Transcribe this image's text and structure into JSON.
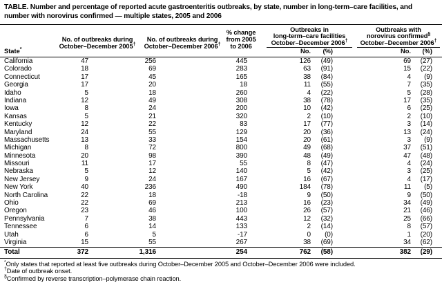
{
  "title": {
    "line1": "TABLE. Number and percentage of reported acute gastroenteritis outbreaks, by state, number in long-term–care facilities, and",
    "line2": "number with norovirus confirmed — multiple states, 2005 and 2006"
  },
  "table": {
    "header": {
      "state": {
        "text": "State",
        "sup": "*"
      },
      "col_2005": {
        "line1": "No. of outbreaks during",
        "line2": "October–December 2005",
        "sup": "†"
      },
      "col_2006": {
        "line1": "No. of outbreaks during",
        "line2": "October–December 2006",
        "sup": "†"
      },
      "col_pct_change": {
        "line1": "% change",
        "line2": "from 2005",
        "line3": "to 2006"
      },
      "group_ltc": {
        "line1": "Outbreaks in",
        "line2": "long-term–care facilities",
        "line3": "October–December 2006",
        "sup": "†"
      },
      "group_norovirus": {
        "line1": "Outbreaks with",
        "line2": "norovirus confirmed",
        "line2_sup": "§",
        "line3": "October–December 2006",
        "sup": "†"
      },
      "sub_no": "No.",
      "sub_pct": "(%)"
    },
    "rows": [
      {
        "state": "California",
        "y2005": "47",
        "y2006": "256",
        "pct": "445",
        "ltc_no": "126",
        "ltc_pct": "(49)",
        "nv_no": "69",
        "nv_pct": "(27)"
      },
      {
        "state": "Colorado",
        "y2005": "18",
        "y2006": "69",
        "pct": "283",
        "ltc_no": "63",
        "ltc_pct": "(91)",
        "nv_no": "15",
        "nv_pct": "(22)"
      },
      {
        "state": "Connecticut",
        "y2005": "17",
        "y2006": "45",
        "pct": "165",
        "ltc_no": "38",
        "ltc_pct": "(84)",
        "nv_no": "4",
        "nv_pct": "(9)"
      },
      {
        "state": "Georgia",
        "y2005": "17",
        "y2006": "20",
        "pct": "18",
        "ltc_no": "11",
        "ltc_pct": "(55)",
        "nv_no": "7",
        "nv_pct": "(35)"
      },
      {
        "state": "Idaho",
        "y2005": "5",
        "y2006": "18",
        "pct": "260",
        "ltc_no": "4",
        "ltc_pct": "(22)",
        "nv_no": "5",
        "nv_pct": "(28)"
      },
      {
        "state": "Indiana",
        "y2005": "12",
        "y2006": "49",
        "pct": "308",
        "ltc_no": "38",
        "ltc_pct": "(78)",
        "nv_no": "17",
        "nv_pct": "(35)"
      },
      {
        "state": "Iowa",
        "y2005": "8",
        "y2006": "24",
        "pct": "200",
        "ltc_no": "10",
        "ltc_pct": "(42)",
        "nv_no": "6",
        "nv_pct": "(25)"
      },
      {
        "state": "Kansas",
        "y2005": "5",
        "y2006": "21",
        "pct": "320",
        "ltc_no": "2",
        "ltc_pct": "(10)",
        "nv_no": "2",
        "nv_pct": "(10)"
      },
      {
        "state": "Kentucky",
        "y2005": "12",
        "y2006": "22",
        "pct": "83",
        "ltc_no": "17",
        "ltc_pct": "(77)",
        "nv_no": "3",
        "nv_pct": "(14)"
      },
      {
        "state": "Maryland",
        "y2005": "24",
        "y2006": "55",
        "pct": "129",
        "ltc_no": "20",
        "ltc_pct": "(36)",
        "nv_no": "13",
        "nv_pct": "(24)"
      },
      {
        "state": "Massachusetts",
        "y2005": "13",
        "y2006": "33",
        "pct": "154",
        "ltc_no": "20",
        "ltc_pct": "(61)",
        "nv_no": "3",
        "nv_pct": "(9)"
      },
      {
        "state": "Michigan",
        "y2005": "8",
        "y2006": "72",
        "pct": "800",
        "ltc_no": "49",
        "ltc_pct": "(68)",
        "nv_no": "37",
        "nv_pct": "(51)"
      },
      {
        "state": "Minnesota",
        "y2005": "20",
        "y2006": "98",
        "pct": "390",
        "ltc_no": "48",
        "ltc_pct": "(49)",
        "nv_no": "47",
        "nv_pct": "(48)"
      },
      {
        "state": "Missouri",
        "y2005": "11",
        "y2006": "17",
        "pct": "55",
        "ltc_no": "8",
        "ltc_pct": "(47)",
        "nv_no": "4",
        "nv_pct": "(24)"
      },
      {
        "state": "Nebraska",
        "y2005": "5",
        "y2006": "12",
        "pct": "140",
        "ltc_no": "5",
        "ltc_pct": "(42)",
        "nv_no": "3",
        "nv_pct": "(25)"
      },
      {
        "state": "New Jersey",
        "y2005": "9",
        "y2006": "24",
        "pct": "167",
        "ltc_no": "16",
        "ltc_pct": "(67)",
        "nv_no": "4",
        "nv_pct": "(17)"
      },
      {
        "state": "New York",
        "y2005": "40",
        "y2006": "236",
        "pct": "490",
        "ltc_no": "184",
        "ltc_pct": "(78)",
        "nv_no": "11",
        "nv_pct": "(5)"
      },
      {
        "state": "North Carolina",
        "y2005": "22",
        "y2006": "18",
        "pct": "-18",
        "ltc_no": "9",
        "ltc_pct": "(50)",
        "nv_no": "9",
        "nv_pct": "(50)"
      },
      {
        "state": "Ohio",
        "y2005": "22",
        "y2006": "69",
        "pct": "213",
        "ltc_no": "16",
        "ltc_pct": "(23)",
        "nv_no": "34",
        "nv_pct": "(49)"
      },
      {
        "state": "Oregon",
        "y2005": "23",
        "y2006": "46",
        "pct": "100",
        "ltc_no": "26",
        "ltc_pct": "(57)",
        "nv_no": "21",
        "nv_pct": "(46)"
      },
      {
        "state": "Pennsylvania",
        "y2005": "7",
        "y2006": "38",
        "pct": "443",
        "ltc_no": "12",
        "ltc_pct": "(32)",
        "nv_no": "25",
        "nv_pct": "(66)"
      },
      {
        "state": "Tennessee",
        "y2005": "6",
        "y2006": "14",
        "pct": "133",
        "ltc_no": "2",
        "ltc_pct": "(14)",
        "nv_no": "8",
        "nv_pct": "(57)"
      },
      {
        "state": "Utah",
        "y2005": "6",
        "y2006": "5",
        "pct": "-17",
        "ltc_no": "0",
        "ltc_pct": "(0)",
        "nv_no": "1",
        "nv_pct": "(20)"
      },
      {
        "state": "Virginia",
        "y2005": "15",
        "y2006": "55",
        "pct": "267",
        "ltc_no": "38",
        "ltc_pct": "(69)",
        "nv_no": "34",
        "nv_pct": "(62)"
      }
    ],
    "total": {
      "state": "Total",
      "y2005": "372",
      "y2006": "1,316",
      "pct": "254",
      "ltc_no": "762",
      "ltc_pct": "(58)",
      "nv_no": "382",
      "nv_pct": "(29)"
    }
  },
  "footnotes": [
    {
      "marker": "*",
      "text": "Only states that reported at least five outbreaks during October–December 2005 and October–December 2006 were included."
    },
    {
      "marker": "†",
      "text": "Date of outbreak onset."
    },
    {
      "marker": "§",
      "text": "Confirmed by reverse transcription–polymerase chain reaction."
    }
  ]
}
